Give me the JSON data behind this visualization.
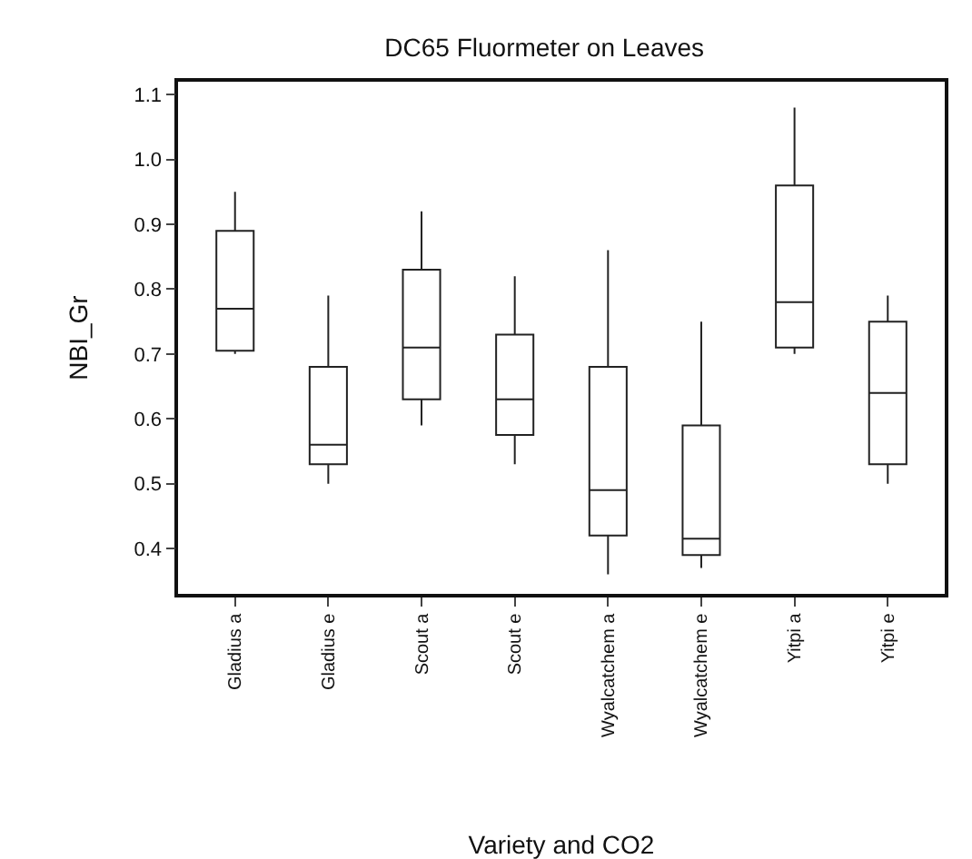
{
  "chart_data": {
    "type": "box",
    "title": "DC65 Fluormeter on Leaves",
    "xlabel": "Variety and CO2",
    "ylabel": "NBI_Gr",
    "categories": [
      "Gladius a",
      "Gladius e",
      "Scout a",
      "Scout e",
      "Wyalcatchem a",
      "Wyalcatchem e",
      "Yitpi a",
      "Yitpi e"
    ],
    "boxes": [
      {
        "low": 0.7,
        "q1": 0.705,
        "median": 0.77,
        "q3": 0.89,
        "high": 0.95
      },
      {
        "low": 0.5,
        "q1": 0.53,
        "median": 0.56,
        "q3": 0.68,
        "high": 0.79
      },
      {
        "low": 0.59,
        "q1": 0.63,
        "median": 0.71,
        "q3": 0.83,
        "high": 0.92
      },
      {
        "low": 0.53,
        "q1": 0.575,
        "median": 0.63,
        "q3": 0.73,
        "high": 0.82
      },
      {
        "low": 0.36,
        "q1": 0.42,
        "median": 0.49,
        "q3": 0.68,
        "high": 0.86
      },
      {
        "low": 0.37,
        "q1": 0.39,
        "median": 0.415,
        "q3": 0.59,
        "high": 0.75
      },
      {
        "low": 0.7,
        "q1": 0.71,
        "median": 0.78,
        "q3": 0.96,
        "high": 1.08
      },
      {
        "low": 0.5,
        "q1": 0.53,
        "median": 0.64,
        "q3": 0.75,
        "high": 0.79
      }
    ],
    "color": "#222222",
    "ylim": [
      0.33,
      1.12
    ],
    "yticks": [
      0.4,
      0.5,
      0.6,
      0.7,
      0.8,
      0.9,
      {
        "value": 1,
        "label": "1.0"
      },
      1.1
    ],
    "grid": false,
    "legend": false
  }
}
